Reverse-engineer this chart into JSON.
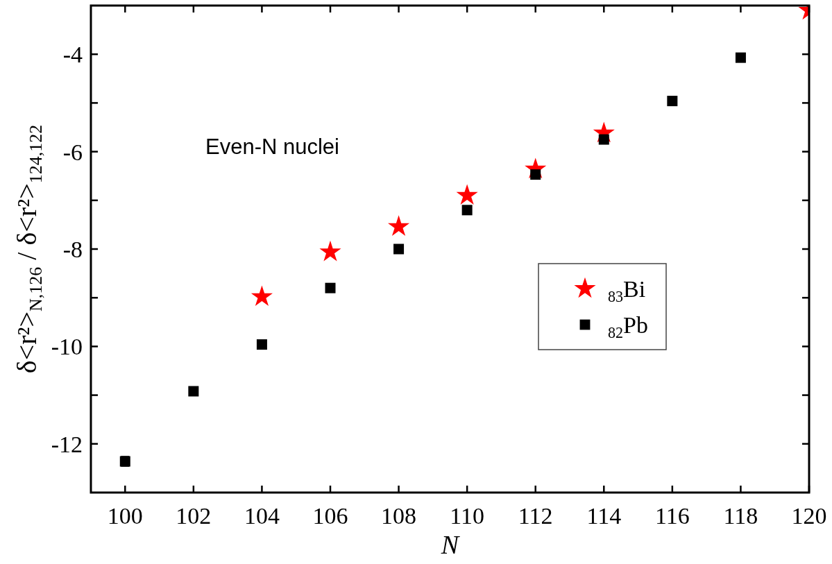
{
  "chart_data": {
    "type": "scatter",
    "xlabel": "N",
    "ylabel": "δ<r²>$_{N,126}$ / δ<r²>$_{124,122}$",
    "annotations": [
      "Even-N nuclei"
    ],
    "xlim": [
      99,
      120
    ],
    "xticks": [
      100,
      102,
      104,
      106,
      108,
      110,
      112,
      114,
      116,
      118,
      120
    ],
    "ylim": [
      -13,
      -3
    ],
    "yticks": [
      -12,
      {
        "value": -11,
        "label": null
      },
      -10,
      {
        "value": -9,
        "label": null
      },
      -8,
      {
        "value": -7,
        "label": null
      },
      -6,
      {
        "value": -5,
        "label": null
      },
      -4
    ],
    "grid": false,
    "legend": "right",
    "series": [
      {
        "name": "$_{83}$Bi",
        "color": "#ff0000",
        "marker": "star",
        "x": [
          104,
          106,
          108,
          110,
          112,
          114,
          120
        ],
        "values": [
          -8.98,
          -8.06,
          -7.54,
          -6.9,
          -6.36,
          -5.62,
          -3.1
        ]
      },
      {
        "name": "$_{82}$Pb",
        "color": "#000000",
        "marker": "square",
        "x": [
          100,
          102,
          104,
          106,
          108,
          110,
          112,
          114,
          116,
          118
        ],
        "values": [
          -12.36,
          -10.92,
          -9.96,
          -8.8,
          -8.0,
          -7.2,
          -6.47,
          -5.75,
          -4.96,
          -4.07
        ],
        "errors": [
          0.1,
          null,
          null,
          null,
          null,
          null,
          null,
          null,
          null,
          null
        ]
      }
    ]
  }
}
